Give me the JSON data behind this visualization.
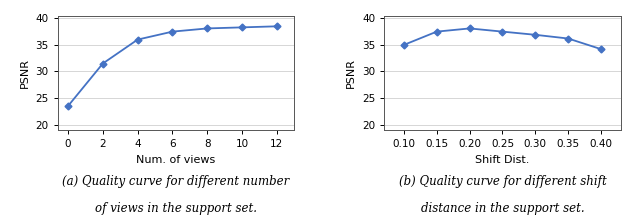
{
  "plot_a": {
    "x": [
      0,
      2,
      4,
      6,
      8,
      10,
      12
    ],
    "y": [
      23.5,
      31.5,
      36.0,
      37.5,
      38.1,
      38.3,
      38.5
    ],
    "xlabel": "Num. of views",
    "ylabel": "PSNR",
    "xlim": [
      -0.6,
      13.0
    ],
    "ylim": [
      19,
      40.5
    ],
    "xticks": [
      0,
      2,
      4,
      6,
      8,
      10,
      12
    ],
    "yticks": [
      20,
      25,
      30,
      35,
      40
    ],
    "caption_line1": "(a) Quality curve for different number",
    "caption_line2": "of views in the support set."
  },
  "plot_b": {
    "x": [
      0.1,
      0.15,
      0.2,
      0.25,
      0.3,
      0.35,
      0.4
    ],
    "y": [
      35.0,
      37.5,
      38.1,
      37.5,
      36.9,
      36.2,
      34.2
    ],
    "xlabel": "Shift Dist.",
    "ylabel": "PSNR",
    "xlim": [
      0.07,
      0.43
    ],
    "ylim": [
      19,
      40.5
    ],
    "xticks": [
      0.1,
      0.15,
      0.2,
      0.25,
      0.3,
      0.35,
      0.4
    ],
    "yticks": [
      20,
      25,
      30,
      35,
      40
    ],
    "caption_line1": "(b) Quality curve for different shift",
    "caption_line2": "distance in the support set."
  },
  "line_color": "#4472c4",
  "marker": "D",
  "markersize": 3.5,
  "linewidth": 1.3,
  "grid_color": "#d0d0d0",
  "background_color": "#ffffff",
  "caption_fontsize": 8.5,
  "tick_fontsize": 7.5,
  "label_fontsize": 8
}
